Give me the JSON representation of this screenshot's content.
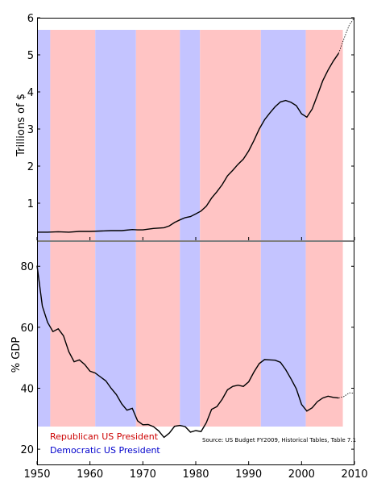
{
  "chart_data": {
    "type": "line",
    "source": "Source: US Budget FY2009, Historical Tables, Table 7.1",
    "legend": [
      {
        "name": "Republican US President",
        "color": "#cc0000"
      },
      {
        "name": "Democratic US President",
        "color": "#0000cc"
      }
    ],
    "band_colors": {
      "R": "#ffc4c4",
      "D": "#c4c4ff"
    },
    "bands": [
      {
        "from": 1950,
        "to": 1952.5,
        "party": "D"
      },
      {
        "from": 1952.5,
        "to": 1961,
        "party": "R"
      },
      {
        "from": 1961,
        "to": 1968.7,
        "party": "D"
      },
      {
        "from": 1968.7,
        "to": 1977,
        "party": "R"
      },
      {
        "from": 1977,
        "to": 1980.8,
        "party": "D"
      },
      {
        "from": 1980.8,
        "to": 1992.3,
        "party": "R"
      },
      {
        "from": 1992.3,
        "to": 2000.8,
        "party": "D"
      },
      {
        "from": 2000.8,
        "to": 2007.8,
        "party": "R"
      }
    ],
    "x_axis": {
      "ticks": [
        1950,
        1960,
        1970,
        1980,
        1990,
        2000,
        2010
      ],
      "range": [
        1950,
        2010
      ]
    },
    "panels": [
      {
        "id": "trillions",
        "ylabel": "Trillions of $",
        "ylim": [
          0,
          6
        ],
        "yticks": [
          1,
          2,
          3,
          4,
          5,
          6
        ],
        "series": {
          "x": [
            1950,
            1952,
            1954,
            1956,
            1958,
            1960,
            1962,
            1964,
            1966,
            1968,
            1969,
            1970,
            1972,
            1974,
            1975,
            1976,
            1977,
            1978,
            1979,
            1980,
            1981,
            1982,
            1983,
            1984,
            1985,
            1986,
            1987,
            1988,
            1989,
            1990,
            1991,
            1992,
            1993,
            1994,
            1995,
            1996,
            1997,
            1998,
            1999,
            2000,
            2001,
            2002,
            2003,
            2004,
            2005,
            2006,
            2007
          ],
          "values": [
            0.22,
            0.22,
            0.23,
            0.22,
            0.24,
            0.24,
            0.25,
            0.26,
            0.26,
            0.29,
            0.28,
            0.28,
            0.32,
            0.34,
            0.39,
            0.48,
            0.55,
            0.61,
            0.64,
            0.71,
            0.79,
            0.92,
            1.14,
            1.31,
            1.5,
            1.74,
            1.89,
            2.05,
            2.19,
            2.41,
            2.69,
            3.0,
            3.25,
            3.43,
            3.6,
            3.73,
            3.77,
            3.72,
            3.63,
            3.41,
            3.32,
            3.54,
            3.91,
            4.3,
            4.59,
            4.83,
            5.04
          ],
          "projection_x": [
            2007,
            2008,
            2009,
            2010
          ],
          "projection_values": [
            5.04,
            5.43,
            5.8,
            6.0
          ]
        }
      },
      {
        "id": "gdp",
        "ylabel": "% GDP",
        "ylim": [
          15,
          88
        ],
        "yticks": [
          20,
          40,
          60,
          80
        ],
        "series": {
          "x": [
            1950,
            1951,
            1952,
            1953,
            1954,
            1955,
            1956,
            1957,
            1958,
            1959,
            1960,
            1961,
            1962,
            1963,
            1964,
            1965,
            1966,
            1967,
            1968,
            1969,
            1970,
            1971,
            1972,
            1973,
            1974,
            1975,
            1976,
            1977,
            1978,
            1979,
            1980,
            1981,
            1982,
            1983,
            1984,
            1985,
            1986,
            1987,
            1988,
            1989,
            1990,
            1991,
            1992,
            1993,
            1994,
            1995,
            1996,
            1997,
            1998,
            1999,
            2000,
            2001,
            2002,
            2003,
            2004,
            2005,
            2006,
            2007
          ],
          "values": [
            80.2,
            66.9,
            61.6,
            58.6,
            59.5,
            57.2,
            52.0,
            48.7,
            49.3,
            47.8,
            45.6,
            45.0,
            43.7,
            42.4,
            40.0,
            37.9,
            34.9,
            32.8,
            33.4,
            29.3,
            28.0,
            28.1,
            27.4,
            26.0,
            23.9,
            25.3,
            27.5,
            27.8,
            27.4,
            25.6,
            26.1,
            25.8,
            28.7,
            33.1,
            34.0,
            36.4,
            39.5,
            40.6,
            41.0,
            40.6,
            42.1,
            45.3,
            48.1,
            49.4,
            49.3,
            49.2,
            48.5,
            46.1,
            43.1,
            39.8,
            34.7,
            32.5,
            33.6,
            35.6,
            36.8,
            37.4,
            37.0,
            36.8
          ],
          "projection_x": [
            2007,
            2008,
            2009,
            2010
          ],
          "projection_values": [
            36.8,
            37.3,
            38.5,
            38.4
          ]
        }
      }
    ]
  }
}
